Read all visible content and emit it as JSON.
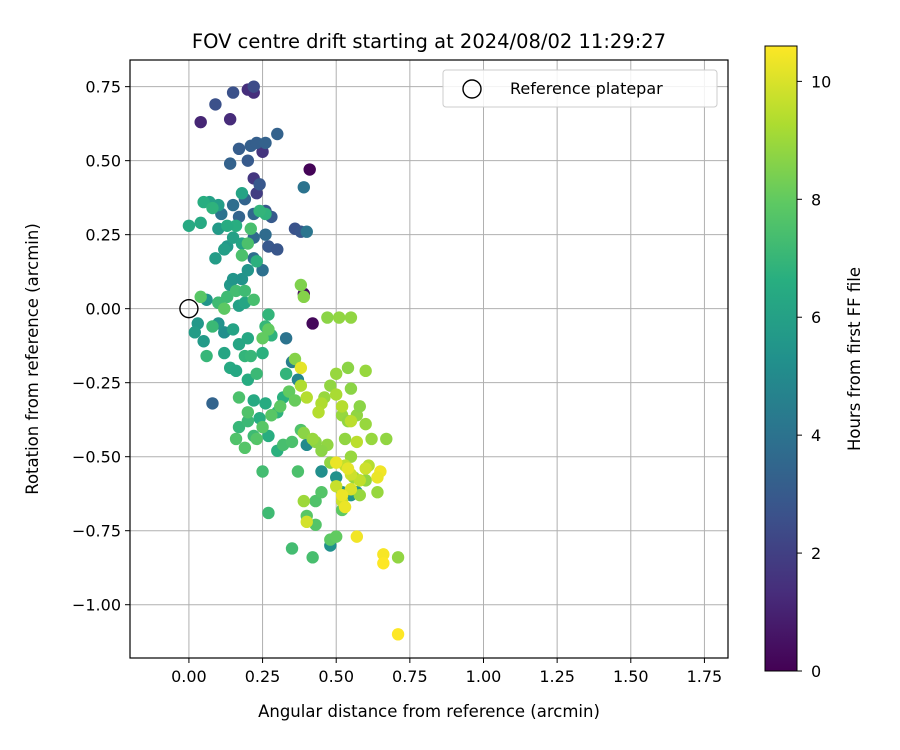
{
  "chart_data": {
    "type": "scatter",
    "title": "FOV centre drift starting at 2024/08/02 11:29:27",
    "xlabel": "Angular distance from reference (arcmin)",
    "ylabel": "Rotation from reference (arcmin)",
    "xlim": [
      -0.2,
      1.83
    ],
    "ylim": [
      -1.18,
      0.84
    ],
    "x_ticks": [
      0.0,
      0.25,
      0.5,
      0.75,
      1.0,
      1.25,
      1.5,
      1.75
    ],
    "x_tick_labels": [
      "0.00",
      "0.25",
      "0.50",
      "0.75",
      "1.00",
      "1.25",
      "1.50",
      "1.75"
    ],
    "y_ticks": [
      0.75,
      0.5,
      0.25,
      0.0,
      -0.25,
      -0.5,
      -0.75,
      -1.0
    ],
    "y_tick_labels": [
      "0.75",
      "0.50",
      "0.25",
      "0.00",
      "−0.25",
      "−0.50",
      "−0.75",
      "−1.00"
    ],
    "grid": true,
    "legend": {
      "position": "top-right",
      "entries": [
        "Reference platepar"
      ]
    },
    "reference_point": {
      "x": 0.0,
      "y": 0.0,
      "marker": "open-circle"
    },
    "colorbar": {
      "label": "Hours from first FF file",
      "colormap": "viridis",
      "range": [
        0,
        10.6
      ],
      "ticks": [
        0,
        2,
        4,
        6,
        8,
        10
      ],
      "tick_labels": [
        "0",
        "2",
        "4",
        "6",
        "8",
        "10"
      ]
    },
    "points": [
      [
        0.41,
        0.47,
        0.1
      ],
      [
        0.42,
        -0.05,
        0.2
      ],
      [
        0.39,
        0.05,
        0.4
      ],
      [
        0.04,
        0.63,
        1.1
      ],
      [
        0.14,
        0.64,
        1.3
      ],
      [
        0.2,
        0.74,
        1.4
      ],
      [
        0.22,
        0.73,
        1.4
      ],
      [
        0.25,
        0.53,
        1.6
      ],
      [
        0.22,
        0.44,
        1.7
      ],
      [
        0.23,
        0.39,
        1.9
      ],
      [
        0.22,
        0.75,
        2.4
      ],
      [
        0.09,
        0.69,
        2.6
      ],
      [
        0.15,
        0.73,
        2.6
      ],
      [
        0.36,
        0.27,
        2.7
      ],
      [
        0.38,
        0.26,
        2.8
      ],
      [
        0.24,
        0.42,
        2.9
      ],
      [
        0.26,
        0.33,
        2.9
      ],
      [
        0.28,
        0.31,
        3.0
      ],
      [
        0.27,
        0.21,
        2.9
      ],
      [
        0.3,
        0.2,
        2.8
      ],
      [
        0.2,
        0.5,
        3.0
      ],
      [
        0.17,
        0.54,
        3.1
      ],
      [
        0.21,
        0.55,
        3.2
      ],
      [
        0.23,
        0.56,
        3.2
      ],
      [
        0.26,
        0.56,
        3.3
      ],
      [
        0.3,
        0.59,
        3.3
      ],
      [
        0.14,
        0.49,
        3.3
      ],
      [
        0.19,
        0.37,
        3.4
      ],
      [
        0.22,
        0.32,
        3.5
      ],
      [
        0.17,
        0.31,
        3.4
      ],
      [
        0.22,
        0.24,
        3.6
      ],
      [
        0.26,
        0.25,
        3.7
      ],
      [
        0.22,
        0.17,
        3.8
      ],
      [
        0.25,
        0.13,
        3.9
      ],
      [
        0.15,
        0.35,
        3.8
      ],
      [
        0.11,
        0.32,
        4.0
      ],
      [
        0.39,
        0.41,
        4.0
      ],
      [
        0.4,
        0.26,
        4.1
      ],
      [
        0.08,
        -0.32,
        3.4
      ],
      [
        0.33,
        -0.1,
        4.0
      ],
      [
        0.35,
        -0.18,
        4.5
      ],
      [
        0.37,
        -0.24,
        4.8
      ],
      [
        0.4,
        -0.46,
        5.0
      ],
      [
        0.45,
        -0.55,
        5.2
      ],
      [
        0.48,
        -0.8,
        5.3
      ],
      [
        0.52,
        -0.62,
        5.4
      ],
      [
        0.5,
        -0.57,
        5.3
      ],
      [
        0.55,
        -0.63,
        5.5
      ],
      [
        0.57,
        -0.62,
        5.6
      ],
      [
        0.12,
        -0.08,
        5.2
      ],
      [
        0.1,
        -0.05,
        5.4
      ],
      [
        0.06,
        0.03,
        5.5
      ],
      [
        0.03,
        -0.05,
        5.6
      ],
      [
        0.02,
        -0.08,
        5.8
      ],
      [
        0.05,
        -0.11,
        5.7
      ],
      [
        0.1,
        0.02,
        5.8
      ],
      [
        0.14,
        0.08,
        5.6
      ],
      [
        0.15,
        0.1,
        5.5
      ],
      [
        0.18,
        0.1,
        5.4
      ],
      [
        0.2,
        0.13,
        5.5
      ],
      [
        0.13,
        0.21,
        5.6
      ],
      [
        0.1,
        0.27,
        5.7
      ],
      [
        0.09,
        0.17,
        5.8
      ],
      [
        0.12,
        0.2,
        5.9
      ],
      [
        0.15,
        0.24,
        6.0
      ],
      [
        0.18,
        0.22,
        6.1
      ],
      [
        0.1,
        0.35,
        5.9
      ],
      [
        0.07,
        0.36,
        6.0
      ],
      [
        0.18,
        0.39,
        6.1
      ],
      [
        0.17,
        0.01,
        6.0
      ],
      [
        0.19,
        0.02,
        6.2
      ],
      [
        0.15,
        -0.07,
        6.1
      ],
      [
        0.17,
        -0.12,
        6.2
      ],
      [
        0.2,
        -0.1,
        6.3
      ],
      [
        0.12,
        -0.15,
        6.2
      ],
      [
        0.14,
        -0.2,
        6.4
      ],
      [
        0.16,
        -0.21,
        6.3
      ],
      [
        0.2,
        -0.24,
        6.5
      ],
      [
        0.22,
        -0.31,
        6.4
      ],
      [
        0.24,
        -0.37,
        6.6
      ],
      [
        0.26,
        -0.32,
        6.5
      ],
      [
        0.27,
        -0.43,
        6.6
      ],
      [
        0.3,
        -0.48,
        6.7
      ],
      [
        0.3,
        -0.35,
        6.8
      ],
      [
        0.32,
        -0.3,
        6.7
      ],
      [
        0.33,
        -0.22,
        6.9
      ],
      [
        0.28,
        -0.09,
        6.8
      ],
      [
        0.25,
        -0.15,
        6.7
      ],
      [
        0.26,
        -0.06,
        7.0
      ],
      [
        0.27,
        -0.02,
        6.9
      ],
      [
        0.26,
        0.32,
        6.8
      ],
      [
        0.24,
        0.33,
        6.9
      ],
      [
        0.23,
        0.16,
        6.7
      ],
      [
        0.16,
        0.28,
        6.6
      ],
      [
        0.13,
        0.28,
        6.5
      ],
      [
        0.04,
        0.29,
        6.4
      ],
      [
        0.0,
        0.28,
        6.4
      ],
      [
        0.05,
        0.36,
        6.6
      ],
      [
        0.08,
        0.34,
        6.8
      ],
      [
        0.19,
        -0.16,
        6.9
      ],
      [
        0.21,
        -0.16,
        7.0
      ],
      [
        0.23,
        -0.22,
        7.1
      ],
      [
        0.17,
        -0.4,
        7.0
      ],
      [
        0.2,
        -0.38,
        7.1
      ],
      [
        0.22,
        -0.43,
        7.2
      ],
      [
        0.25,
        -0.55,
        7.3
      ],
      [
        0.27,
        -0.69,
        7.2
      ],
      [
        0.35,
        -0.81,
        7.3
      ],
      [
        0.42,
        -0.84,
        7.4
      ],
      [
        0.37,
        -0.55,
        7.5
      ],
      [
        0.32,
        -0.46,
        7.4
      ],
      [
        0.35,
        -0.45,
        7.5
      ],
      [
        0.38,
        -0.41,
        7.6
      ],
      [
        0.43,
        -0.65,
        7.6
      ],
      [
        0.45,
        -0.62,
        7.7
      ],
      [
        0.4,
        -0.7,
        7.8
      ],
      [
        0.43,
        -0.73,
        7.7
      ],
      [
        0.48,
        -0.78,
        7.9
      ],
      [
        0.52,
        -0.68,
        7.9
      ],
      [
        0.5,
        -0.77,
        8.0
      ],
      [
        0.06,
        -0.16,
        7.0
      ],
      [
        0.08,
        -0.06,
        7.1
      ],
      [
        0.1,
        0.02,
        7.2
      ],
      [
        0.13,
        0.04,
        7.2
      ],
      [
        0.16,
        0.06,
        7.3
      ],
      [
        0.19,
        0.06,
        7.2
      ],
      [
        0.22,
        0.03,
        7.4
      ],
      [
        0.21,
        0.27,
        7.4
      ],
      [
        0.2,
        0.22,
        7.5
      ],
      [
        0.18,
        0.18,
        7.5
      ],
      [
        0.17,
        -0.3,
        7.5
      ],
      [
        0.2,
        -0.35,
        7.6
      ],
      [
        0.16,
        -0.44,
        7.6
      ],
      [
        0.19,
        -0.47,
        7.7
      ],
      [
        0.23,
        -0.44,
        7.7
      ],
      [
        0.25,
        -0.4,
        7.8
      ],
      [
        0.28,
        -0.36,
        7.8
      ],
      [
        0.31,
        -0.33,
        7.9
      ],
      [
        0.34,
        -0.28,
        8.0
      ],
      [
        0.36,
        -0.31,
        8.1
      ],
      [
        0.04,
        0.04,
        7.8
      ],
      [
        0.12,
        0.0,
        7.9
      ],
      [
        0.25,
        -0.1,
        8.0
      ],
      [
        0.27,
        -0.07,
        8.0
      ],
      [
        0.38,
        0.08,
        8.5
      ],
      [
        0.39,
        0.04,
        8.6
      ],
      [
        0.47,
        -0.03,
        8.7
      ],
      [
        0.51,
        -0.03,
        8.8
      ],
      [
        0.55,
        -0.03,
        8.8
      ],
      [
        0.36,
        -0.17,
        8.6
      ],
      [
        0.6,
        -0.21,
        8.9
      ],
      [
        0.6,
        -0.39,
        8.9
      ],
      [
        0.62,
        -0.44,
        8.9
      ],
      [
        0.67,
        -0.44,
        8.8
      ],
      [
        0.64,
        -0.62,
        8.9
      ],
      [
        0.71,
        -0.84,
        8.8
      ],
      [
        0.39,
        -0.42,
        8.7
      ],
      [
        0.43,
        -0.45,
        8.7
      ],
      [
        0.47,
        -0.46,
        8.8
      ],
      [
        0.52,
        -0.36,
        8.9
      ],
      [
        0.54,
        -0.38,
        8.8
      ],
      [
        0.57,
        -0.36,
        8.8
      ],
      [
        0.58,
        -0.33,
        8.7
      ],
      [
        0.55,
        -0.27,
        8.7
      ],
      [
        0.48,
        -0.26,
        8.8
      ],
      [
        0.46,
        -0.3,
        8.9
      ],
      [
        0.5,
        -0.22,
        8.9
      ],
      [
        0.54,
        -0.2,
        8.7
      ],
      [
        0.53,
        -0.44,
        8.8
      ],
      [
        0.55,
        -0.5,
        8.9
      ],
      [
        0.56,
        -0.57,
        8.9
      ],
      [
        0.6,
        -0.58,
        8.8
      ],
      [
        0.58,
        -0.63,
        8.9
      ],
      [
        0.48,
        -0.52,
        8.8
      ],
      [
        0.45,
        -0.48,
        8.7
      ],
      [
        0.42,
        -0.44,
        8.9
      ],
      [
        0.39,
        -0.65,
        9.0
      ],
      [
        0.5,
        -0.29,
        9.2
      ],
      [
        0.45,
        -0.32,
        9.3
      ],
      [
        0.44,
        -0.35,
        9.4
      ],
      [
        0.4,
        -0.3,
        9.4
      ],
      [
        0.38,
        -0.26,
        9.3
      ],
      [
        0.52,
        -0.33,
        9.4
      ],
      [
        0.55,
        -0.38,
        9.5
      ],
      [
        0.57,
        -0.45,
        9.5
      ],
      [
        0.61,
        -0.53,
        9.4
      ],
      [
        0.58,
        -0.58,
        9.6
      ],
      [
        0.53,
        -0.53,
        9.6
      ],
      [
        0.55,
        -0.56,
        9.8
      ],
      [
        0.6,
        -0.54,
        9.8
      ],
      [
        0.5,
        -0.6,
        9.7
      ],
      [
        0.52,
        -0.65,
        9.8
      ],
      [
        0.4,
        -0.72,
        9.9
      ],
      [
        0.55,
        -0.61,
        10.0
      ],
      [
        0.38,
        -0.2,
        10.2
      ],
      [
        0.52,
        -0.63,
        10.3
      ],
      [
        0.53,
        -0.67,
        10.3
      ],
      [
        0.65,
        -0.55,
        10.4
      ],
      [
        0.64,
        -0.57,
        10.3
      ],
      [
        0.66,
        -0.83,
        10.5
      ],
      [
        0.66,
        -0.86,
        10.6
      ],
      [
        0.71,
        -1.1,
        10.6
      ],
      [
        0.57,
        -0.77,
        10.4
      ],
      [
        0.5,
        -0.52,
        10.3
      ],
      [
        0.54,
        -0.54,
        10.2
      ]
    ]
  }
}
